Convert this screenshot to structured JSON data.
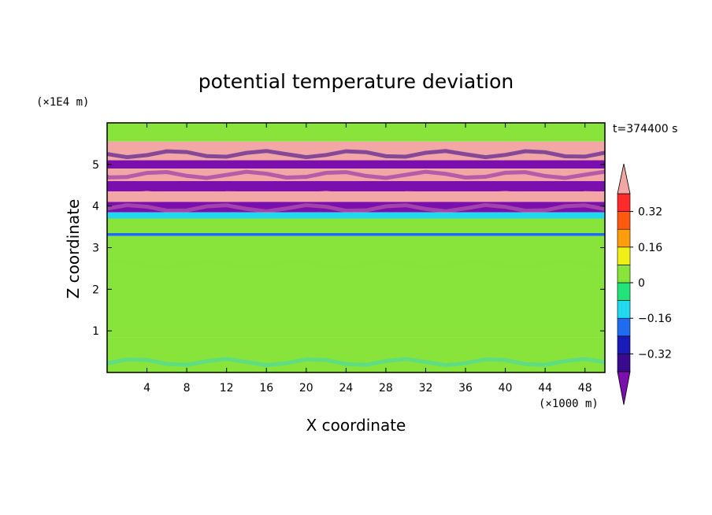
{
  "chart_data": {
    "type": "heatmap",
    "title": "potential temperature deviation",
    "xlabel": "X coordinate",
    "ylabel": "Z coordinate",
    "x_unit": "(×1000 m)",
    "y_unit": "(×1E4 m)",
    "time_label": "t=374400 s",
    "xlim": [
      0,
      50
    ],
    "ylim": [
      0,
      6
    ],
    "x_ticks": [
      "4",
      "8",
      "12",
      "16",
      "20",
      "24",
      "28",
      "32",
      "36",
      "40",
      "44",
      "48"
    ],
    "y_ticks": [
      "1",
      "2",
      "3",
      "4",
      "5"
    ],
    "colorbar": {
      "labels": [
        "0.32",
        "0.16",
        "0",
        "−0.16",
        "−0.32"
      ],
      "label_levels": [
        0.32,
        0.16,
        0,
        -0.16,
        -0.32
      ],
      "levels": [
        -0.4,
        -0.32,
        -0.24,
        -0.16,
        -0.08,
        0,
        0.08,
        0.16,
        0.24,
        0.32,
        0.4
      ],
      "colors": [
        "#7a0fae",
        "#3a0a8e",
        "#1a1ab8",
        "#1f6cf0",
        "#22d8ee",
        "#22e37a",
        "#88e33a",
        "#f0f018",
        "#ff9d0d",
        "#ff5a10",
        "#ff2a2a",
        "#f2a6a6"
      ],
      "extend": "both"
    },
    "bands": [
      {
        "z0": 5.55,
        "z1": 6.0,
        "value": 0.05,
        "note": "upper green layer"
      },
      {
        "z0": 5.1,
        "z1": 5.55,
        "value": 0.45
      },
      {
        "z0": 4.9,
        "z1": 5.1,
        "value": -0.45
      },
      {
        "z0": 4.6,
        "z1": 4.9,
        "value": 0.45
      },
      {
        "z0": 4.35,
        "z1": 4.6,
        "value": -0.45
      },
      {
        "z0": 4.1,
        "z1": 4.35,
        "value": 0.45
      },
      {
        "z0": 3.85,
        "z1": 4.1,
        "value": -0.45
      },
      {
        "z0": 3.7,
        "z1": 3.85,
        "value": -0.1
      },
      {
        "z0": 3.35,
        "z1": 3.7,
        "value": 0.05
      },
      {
        "z0": 3.28,
        "z1": 3.35,
        "value": -0.2
      },
      {
        "z0": 0.85,
        "z1": 3.28,
        "value": 0.03
      },
      {
        "z0": 0.0,
        "z1": 0.85,
        "value": 0.05
      }
    ]
  }
}
